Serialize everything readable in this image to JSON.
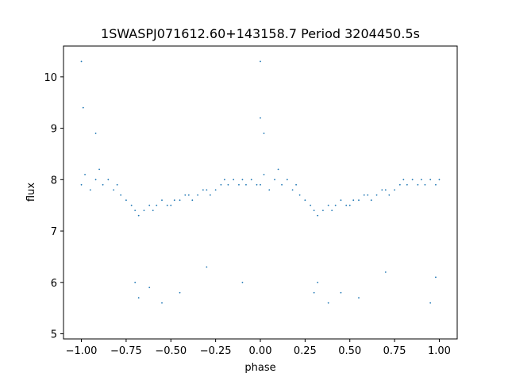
{
  "chart_data": {
    "type": "scatter",
    "title": "1SWASPJ071612.60+143158.7 Period 3204450.5s",
    "xlabel": "phase",
    "ylabel": "flux",
    "xlim": [
      -1.1,
      1.1
    ],
    "ylim": [
      4.9,
      10.6
    ],
    "xticks": [
      -1.0,
      -0.75,
      -0.5,
      -0.25,
      0.0,
      0.25,
      0.5,
      0.75,
      1.0
    ],
    "xtick_labels": [
      "−1.00",
      "−0.75",
      "−0.50",
      "−0.25",
      "0.00",
      "0.25",
      "0.50",
      "0.75",
      "1.00"
    ],
    "yticks": [
      5,
      6,
      7,
      8,
      9,
      10
    ],
    "ytick_labels": [
      "5",
      "6",
      "7",
      "8",
      "9",
      "10"
    ],
    "grid": false,
    "point_color": "#1f77b4",
    "series": [
      {
        "values": [
          [
            -1.0,
            7.9
          ],
          [
            -0.98,
            8.1
          ],
          [
            -0.95,
            7.8
          ],
          [
            -0.92,
            8.0
          ],
          [
            -0.9,
            8.2
          ],
          [
            -0.88,
            7.9
          ],
          [
            -0.85,
            8.0
          ],
          [
            -0.82,
            7.8
          ],
          [
            -0.8,
            7.9
          ],
          [
            -0.78,
            7.7
          ],
          [
            -0.75,
            7.6
          ],
          [
            -0.72,
            7.5
          ],
          [
            -0.7,
            7.4
          ],
          [
            -0.68,
            7.3
          ],
          [
            -0.65,
            7.4
          ],
          [
            -0.62,
            7.5
          ],
          [
            -0.6,
            7.4
          ],
          [
            -0.58,
            7.5
          ],
          [
            -0.55,
            7.6
          ],
          [
            -0.52,
            7.5
          ],
          [
            -0.5,
            7.5
          ],
          [
            -0.48,
            7.6
          ],
          [
            -0.45,
            7.6
          ],
          [
            -0.42,
            7.7
          ],
          [
            -0.4,
            7.7
          ],
          [
            -0.38,
            7.6
          ],
          [
            -0.35,
            7.7
          ],
          [
            -0.32,
            7.8
          ],
          [
            -0.3,
            7.8
          ],
          [
            -0.28,
            7.7
          ],
          [
            -0.25,
            7.8
          ],
          [
            -0.22,
            7.9
          ],
          [
            -0.2,
            8.0
          ],
          [
            -0.18,
            7.9
          ],
          [
            -0.15,
            8.0
          ],
          [
            -0.12,
            7.9
          ],
          [
            -0.1,
            8.0
          ],
          [
            -0.08,
            7.9
          ],
          [
            -0.05,
            8.0
          ],
          [
            -0.02,
            7.9
          ],
          [
            0.0,
            7.9
          ],
          [
            0.02,
            8.1
          ],
          [
            0.05,
            7.8
          ],
          [
            0.08,
            8.0
          ],
          [
            0.1,
            8.2
          ],
          [
            0.12,
            7.9
          ],
          [
            0.15,
            8.0
          ],
          [
            0.18,
            7.8
          ],
          [
            0.2,
            7.9
          ],
          [
            0.22,
            7.7
          ],
          [
            0.25,
            7.6
          ],
          [
            0.28,
            7.5
          ],
          [
            0.3,
            7.4
          ],
          [
            0.32,
            7.3
          ],
          [
            0.35,
            7.4
          ],
          [
            0.38,
            7.5
          ],
          [
            0.4,
            7.4
          ],
          [
            0.42,
            7.5
          ],
          [
            0.45,
            7.6
          ],
          [
            0.48,
            7.5
          ],
          [
            0.5,
            7.5
          ],
          [
            0.52,
            7.6
          ],
          [
            0.55,
            7.6
          ],
          [
            0.58,
            7.7
          ],
          [
            0.6,
            7.7
          ],
          [
            0.62,
            7.6
          ],
          [
            0.65,
            7.7
          ],
          [
            0.68,
            7.8
          ],
          [
            0.7,
            7.8
          ],
          [
            0.72,
            7.7
          ],
          [
            0.75,
            7.8
          ],
          [
            0.78,
            7.9
          ],
          [
            0.8,
            8.0
          ],
          [
            0.82,
            7.9
          ],
          [
            0.85,
            8.0
          ],
          [
            0.88,
            7.9
          ],
          [
            0.9,
            8.0
          ],
          [
            0.92,
            7.9
          ],
          [
            0.95,
            8.0
          ],
          [
            0.98,
            7.9
          ],
          [
            1.0,
            8.0
          ],
          [
            -1.0,
            10.3
          ],
          [
            -0.99,
            9.4
          ],
          [
            -0.92,
            8.9
          ],
          [
            -0.7,
            6.0
          ],
          [
            -0.68,
            5.7
          ],
          [
            -0.62,
            5.9
          ],
          [
            -0.55,
            5.6
          ],
          [
            -0.45,
            5.8
          ],
          [
            -0.3,
            6.3
          ],
          [
            -0.1,
            6.0
          ],
          [
            0.0,
            10.3
          ],
          [
            0.0,
            9.2
          ],
          [
            0.02,
            8.9
          ],
          [
            0.3,
            5.8
          ],
          [
            0.32,
            6.0
          ],
          [
            0.38,
            5.6
          ],
          [
            0.45,
            5.8
          ],
          [
            0.55,
            5.7
          ],
          [
            0.7,
            6.2
          ],
          [
            0.95,
            5.6
          ],
          [
            0.98,
            6.1
          ]
        ]
      }
    ]
  }
}
